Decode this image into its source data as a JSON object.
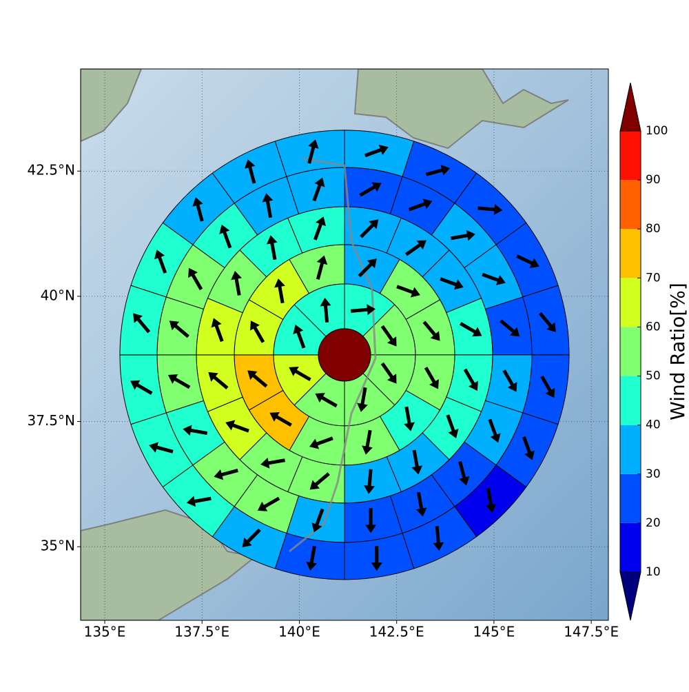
{
  "chart_data": {
    "type": "polar-grid-map",
    "xlim": [
      134.38,
      147.94
    ],
    "ylim": [
      33.53,
      44.54
    ],
    "xticks": [
      {
        "value": 135,
        "label": "135°E"
      },
      {
        "value": 137.5,
        "label": "137.5°E"
      },
      {
        "value": 140,
        "label": "140°E"
      },
      {
        "value": 142.5,
        "label": "142.5°E"
      },
      {
        "value": 145,
        "label": "145°E"
      },
      {
        "value": 147.5,
        "label": "147.5°E"
      }
    ],
    "yticks": [
      {
        "value": 35,
        "label": "35°N"
      },
      {
        "value": 37.5,
        "label": "37.5°N"
      },
      {
        "value": 40,
        "label": "40°N"
      },
      {
        "value": 42.5,
        "label": "42.5°N"
      }
    ],
    "grid": true,
    "center_lon": 141.16,
    "center_lat": 38.83,
    "center_value": 105,
    "rings": [
      {
        "values": [
          45,
          55,
          55,
          55,
          55,
          65,
          45,
          45
        ],
        "directions": [
          85,
          145,
          145,
          190,
          300,
          300,
          340,
          355
        ]
      },
      {
        "values": [
          35,
          55,
          55,
          55,
          45,
          55,
          55,
          75,
          75,
          65,
          65,
          55
        ],
        "directions": [
          45,
          110,
          140,
          150,
          170,
          190,
          250,
          300,
          310,
          330,
          350,
          15
        ]
      },
      {
        "values": [
          35,
          35,
          35,
          45,
          45,
          45,
          35,
          35,
          55,
          55,
          65,
          65,
          65,
          55,
          45,
          45
        ],
        "directions": [
          45,
          55,
          110,
          120,
          150,
          160,
          170,
          185,
          230,
          260,
          290,
          310,
          340,
          350,
          350,
          20
        ]
      },
      {
        "values": [
          25,
          25,
          35,
          35,
          25,
          35,
          35,
          25,
          25,
          25,
          35,
          55,
          55,
          45,
          55,
          55,
          55,
          45,
          35,
          35
        ],
        "directions": [
          60,
          70,
          80,
          110,
          130,
          150,
          160,
          165,
          170,
          180,
          200,
          240,
          255,
          280,
          300,
          310,
          330,
          340,
          350,
          20
        ]
      },
      {
        "values": [
          35,
          25,
          25,
          25,
          25,
          25,
          25,
          15,
          25,
          25,
          25,
          35,
          45,
          45,
          45,
          45,
          45,
          35,
          35,
          35
        ],
        "directions": [
          70,
          75,
          95,
          115,
          140,
          150,
          160,
          170,
          175,
          180,
          190,
          225,
          260,
          285,
          300,
          320,
          340,
          345,
          345,
          15
        ]
      }
    ],
    "colorbar": {
      "label": "Wind Ratio[%]",
      "ticks": [
        10,
        20,
        30,
        40,
        50,
        60,
        70,
        80,
        90,
        100
      ],
      "colors": [
        "#00007f",
        "#0000ee",
        "#0050ff",
        "#00b0ff",
        "#20ffd0",
        "#80ff70",
        "#d0ff20",
        "#ffc000",
        "#ff6000",
        "#ff1000",
        "#800000"
      ]
    }
  }
}
